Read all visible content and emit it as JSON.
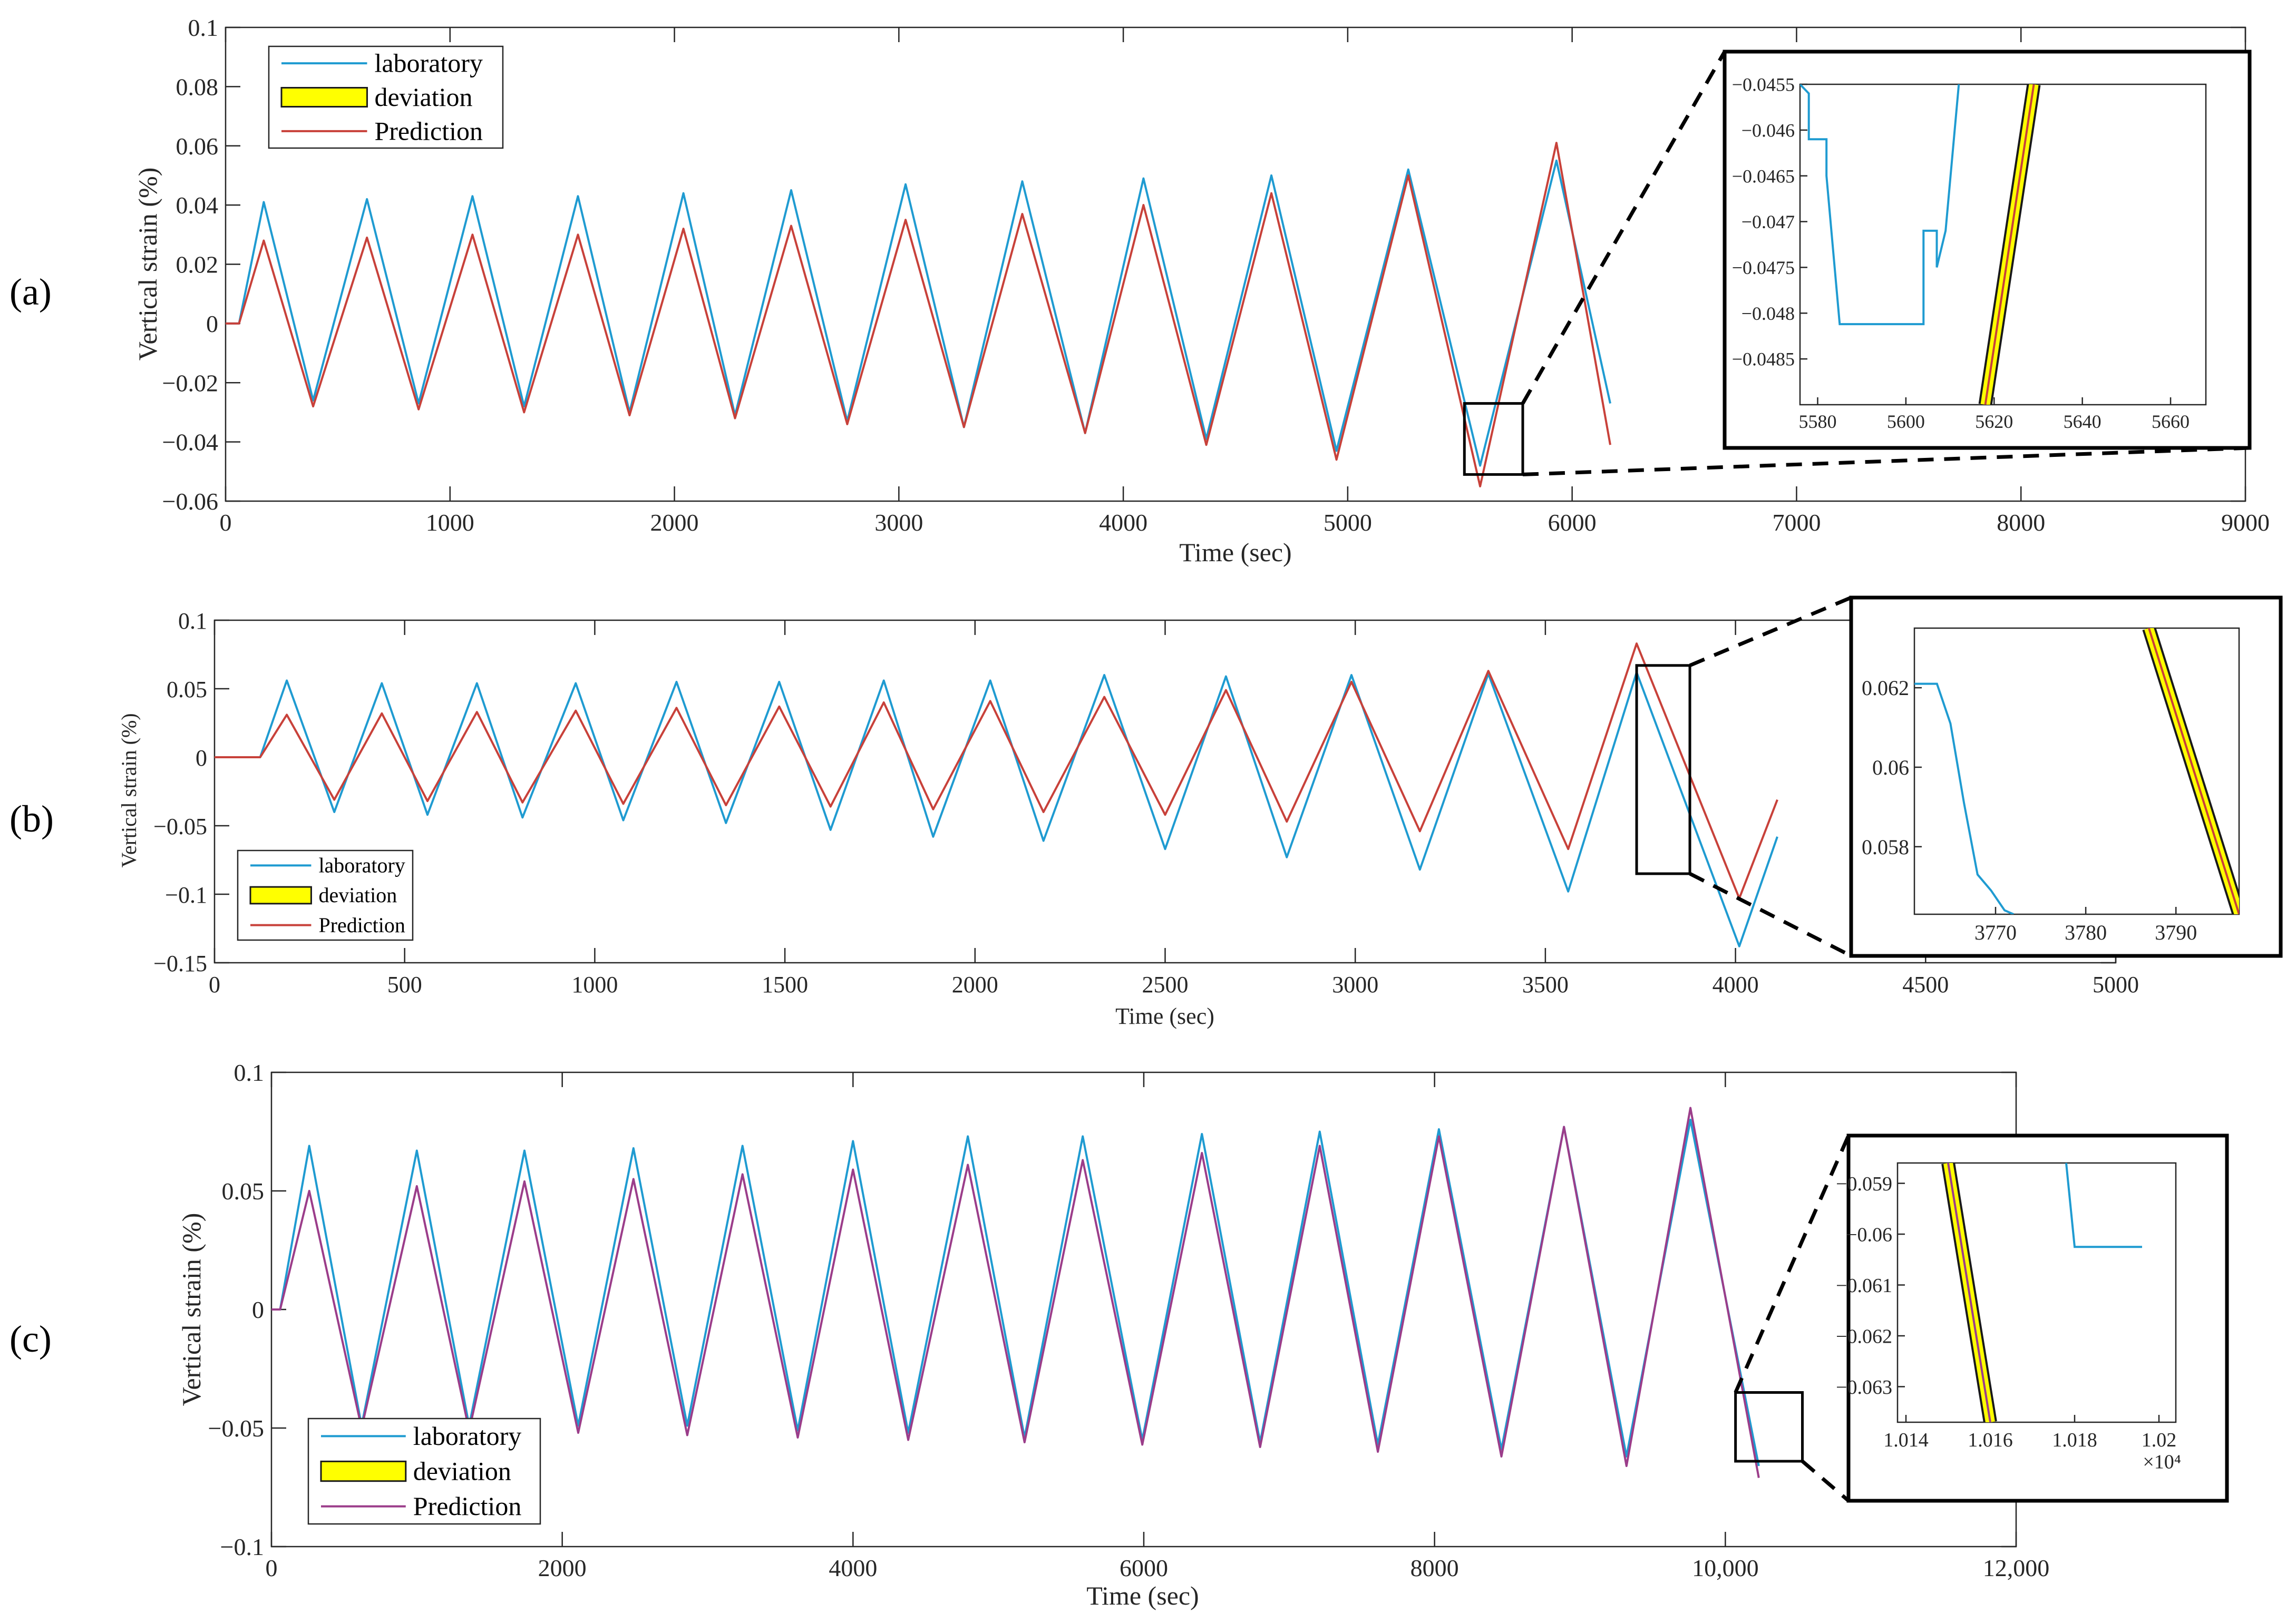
{
  "colors": {
    "laboratory": "#1f9bd1",
    "prediction": "#c8413a",
    "prediction_c": "#9b3d8a",
    "deviation_fill": "#ffff00",
    "deviation_edge": "#1a1a1a",
    "frame": "#262626",
    "zoom_box": "#000000"
  },
  "chart_data": [
    {
      "panel": "(a)",
      "type": "line",
      "xlabel": "Time (sec)",
      "ylabel": "Vertical strain (%)",
      "xlim": [
        0,
        9000
      ],
      "ylim": [
        -0.06,
        0.1
      ],
      "xticks": [
        "0",
        "1000",
        "2000",
        "3000",
        "4000",
        "5000",
        "6000",
        "7000",
        "8000",
        "9000"
      ],
      "yticks": [
        "-0.06",
        "-0.04",
        "-0.02",
        "0",
        "0.02",
        "0.04",
        "0.06",
        "0.08",
        "0.1"
      ],
      "legend": [
        "laboratory",
        "deviation",
        "Prediction"
      ],
      "legend_position": "top-left",
      "series": [
        {
          "name": "laboratory",
          "x": [
            0,
            60,
            170,
            390,
            630,
            860,
            1100,
            1330,
            1570,
            1800,
            2040,
            2270,
            2520,
            2770,
            3030,
            3290,
            3550,
            3830,
            4090,
            4370,
            4660,
            4950,
            5270,
            5590,
            5930,
            6170
          ],
          "y": [
            0,
            0,
            0.041,
            -0.026,
            0.042,
            -0.027,
            0.043,
            -0.028,
            0.043,
            -0.03,
            0.044,
            -0.031,
            0.045,
            -0.033,
            0.047,
            -0.035,
            0.048,
            -0.037,
            0.049,
            -0.039,
            0.05,
            -0.043,
            0.052,
            -0.048,
            0.055,
            -0.027
          ]
        },
        {
          "name": "Prediction",
          "x": [
            0,
            60,
            170,
            390,
            630,
            860,
            1100,
            1330,
            1570,
            1800,
            2040,
            2270,
            2520,
            2770,
            3030,
            3290,
            3550,
            3830,
            4090,
            4370,
            4660,
            4950,
            5270,
            5590,
            5930,
            6170
          ],
          "y": [
            0,
            0,
            0.028,
            -0.028,
            0.029,
            -0.029,
            0.03,
            -0.03,
            0.03,
            -0.031,
            0.032,
            -0.032,
            0.033,
            -0.034,
            0.035,
            -0.035,
            0.037,
            -0.037,
            0.04,
            -0.041,
            0.044,
            -0.046,
            0.05,
            -0.055,
            0.061,
            -0.041
          ]
        }
      ],
      "zoom_region": {
        "x": [
          5520,
          5780
        ],
        "y": [
          -0.051,
          -0.027
        ]
      },
      "inset": {
        "xlim": [
          5576,
          5668
        ],
        "ylim": [
          -0.049,
          -0.0455
        ],
        "xticks": [
          "5580",
          "5600",
          "5620",
          "5640",
          "5660"
        ],
        "yticks": [
          "-0.0485",
          "-0.048",
          "-0.0475",
          "-0.047",
          "-0.0465",
          "-0.046",
          "-0.0455"
        ],
        "laboratory": {
          "x": [
            5576,
            5578,
            5578,
            5582,
            5582,
            5585,
            5604,
            5604,
            5607,
            5607,
            5609,
            5609,
            5612
          ],
          "y": [
            -0.0455,
            -0.0456,
            -0.0461,
            -0.0461,
            -0.0465,
            -0.04812,
            -0.04812,
            -0.0471,
            -0.0471,
            -0.0475,
            -0.0471,
            -0.0471,
            -0.0455
          ]
        },
        "prediction": {
          "x": [
            5618,
            5629
          ],
          "y": [
            -0.049,
            -0.0455
          ]
        }
      }
    },
    {
      "panel": "(b)",
      "type": "line",
      "xlabel": "Time (sec)",
      "ylabel": "Vertical strain (%)",
      "xlim": [
        0,
        5000
      ],
      "ylim": [
        -0.15,
        0.1
      ],
      "xticks": [
        "0",
        "500",
        "1000",
        "1500",
        "2000",
        "2500",
        "3000",
        "3500",
        "4000",
        "4500",
        "5000"
      ],
      "yticks": [
        "-0.15",
        "-0.1",
        "-0.05",
        "0",
        "0.05",
        "0.1"
      ],
      "legend": [
        "laboratory",
        "deviation",
        "Prediction"
      ],
      "legend_position": "bottom-left",
      "series": [
        {
          "name": "laboratory",
          "x": [
            0,
            120,
            190,
            315,
            440,
            560,
            690,
            810,
            950,
            1075,
            1215,
            1345,
            1485,
            1620,
            1760,
            1890,
            2040,
            2180,
            2340,
            2500,
            2660,
            2820,
            2990,
            3170,
            3350,
            3560,
            3740,
            4010,
            4110
          ],
          "y": [
            0,
            0,
            0.056,
            -0.04,
            0.054,
            -0.042,
            0.054,
            -0.044,
            0.054,
            -0.046,
            0.055,
            -0.048,
            0.055,
            -0.053,
            0.056,
            -0.058,
            0.056,
            -0.061,
            0.06,
            -0.067,
            0.059,
            -0.073,
            0.06,
            -0.082,
            0.061,
            -0.098,
            0.062,
            -0.138,
            -0.058
          ]
        },
        {
          "name": "Prediction",
          "x": [
            0,
            120,
            190,
            315,
            440,
            560,
            690,
            810,
            950,
            1075,
            1215,
            1345,
            1485,
            1620,
            1760,
            1890,
            2040,
            2180,
            2340,
            2500,
            2660,
            2820,
            2990,
            3170,
            3350,
            3560,
            3740,
            4010,
            4110
          ],
          "y": [
            0,
            0,
            0.031,
            -0.031,
            0.032,
            -0.032,
            0.033,
            -0.033,
            0.034,
            -0.034,
            0.036,
            -0.035,
            0.037,
            -0.036,
            0.04,
            -0.038,
            0.041,
            -0.04,
            0.044,
            -0.042,
            0.049,
            -0.047,
            0.055,
            -0.054,
            0.063,
            -0.067,
            0.083,
            -0.103,
            -0.031
          ]
        }
      ],
      "zoom_region": {
        "x": [
          3740,
          3880
        ],
        "y": [
          -0.085,
          0.067
        ]
      },
      "inset": {
        "xlim": [
          3761,
          3797
        ],
        "ylim": [
          0.0563,
          0.0635
        ],
        "xticks": [
          "3770",
          "3780",
          "3790"
        ],
        "yticks": [
          "0.058",
          "0.06",
          "0.062"
        ],
        "laboratory": {
          "x": [
            3761,
            3763.5,
            3765,
            3766.5,
            3768,
            3769.5,
            3771,
            3772
          ],
          "y": [
            0.0621,
            0.0621,
            0.0611,
            0.0591,
            0.0573,
            0.0569,
            0.0564,
            0.0563
          ]
        },
        "prediction": {
          "x": [
            3787,
            3797
          ],
          "y": [
            0.0635,
            0.0563
          ]
        }
      }
    },
    {
      "panel": "(c)",
      "type": "line",
      "xlabel": "Time (sec)",
      "ylabel": "Vertical strain (%)",
      "xlim": [
        0,
        12000
      ],
      "ylim": [
        -0.1,
        0.1
      ],
      "xticks": [
        "0",
        "2000",
        "4000",
        "6000",
        "8000",
        "10,000",
        "12,000"
      ],
      "yticks": [
        "-0.1",
        "-0.05",
        "0",
        "0.05",
        "0.1"
      ],
      "legend": [
        "laboratory",
        "deviation",
        "Prediction"
      ],
      "legend_position": "bottom-left",
      "series": [
        {
          "name": "laboratory",
          "x": [
            0,
            60,
            260,
            620,
            1000,
            1360,
            1740,
            2110,
            2490,
            2860,
            3240,
            3620,
            4000,
            4380,
            4790,
            5180,
            5580,
            5990,
            6400,
            6800,
            7210,
            7610,
            8030,
            8460,
            8890,
            9320,
            9760,
            10230
          ],
          "y": [
            0,
            0,
            0.069,
            -0.049,
            0.067,
            -0.049,
            0.067,
            -0.049,
            0.068,
            -0.049,
            0.069,
            -0.051,
            0.071,
            -0.052,
            0.073,
            -0.054,
            0.073,
            -0.055,
            0.074,
            -0.056,
            0.075,
            -0.057,
            0.076,
            -0.059,
            0.077,
            -0.062,
            0.08,
            -0.066
          ]
        },
        {
          "name": "Prediction",
          "x": [
            0,
            60,
            260,
            620,
            1000,
            1360,
            1740,
            2110,
            2490,
            2860,
            3240,
            3620,
            4000,
            4380,
            4790,
            5180,
            5580,
            5990,
            6400,
            6800,
            7210,
            7610,
            8030,
            8460,
            8890,
            9320,
            9760,
            10230
          ],
          "y": [
            0,
            0,
            0.05,
            -0.05,
            0.052,
            -0.051,
            0.054,
            -0.052,
            0.055,
            -0.053,
            0.057,
            -0.054,
            0.059,
            -0.055,
            0.061,
            -0.056,
            0.063,
            -0.057,
            0.066,
            -0.058,
            0.069,
            -0.06,
            0.073,
            -0.062,
            0.077,
            -0.066,
            0.085,
            -0.071
          ]
        }
      ],
      "zoom_region": {
        "x": [
          10070,
          10530
        ],
        "y": [
          -0.064,
          -0.035
        ]
      },
      "inset": {
        "xlim": [
          10138,
          10204
        ],
        "ylim": [
          -0.0637,
          -0.0586
        ],
        "xticks": [
          "1.014",
          "1.016",
          "1.018",
          "1.02"
        ],
        "yticks": [
          "-0.063",
          "-0.062",
          "-0.061",
          "-0.06",
          "-0.059"
        ],
        "exponent": "×10⁴",
        "laboratory": {
          "x": [
            10178,
            10180,
            10196
          ],
          "y": [
            -0.0586,
            -0.06025,
            -0.06025
          ]
        },
        "prediction": {
          "x": [
            10150,
            10160
          ],
          "y": [
            -0.0586,
            -0.0637
          ]
        }
      }
    }
  ]
}
